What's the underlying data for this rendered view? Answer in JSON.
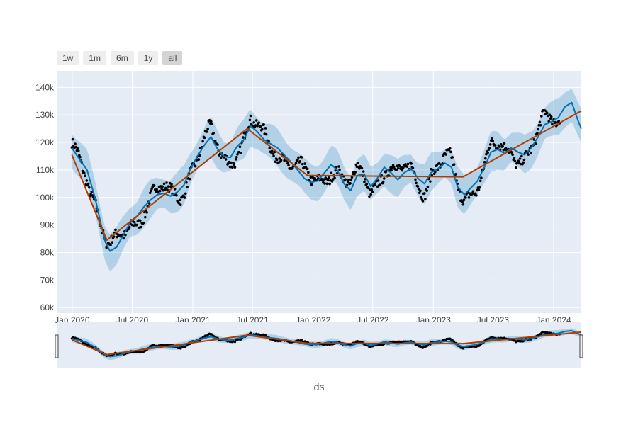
{
  "range_selector": {
    "buttons": [
      {
        "label": "1w",
        "active": false
      },
      {
        "label": "1m",
        "active": false
      },
      {
        "label": "6m",
        "active": false
      },
      {
        "label": "1y",
        "active": false
      },
      {
        "label": "all",
        "active": true
      }
    ]
  },
  "colors": {
    "plot_bg": "#e5ecf6",
    "grid": "#ffffff",
    "forecast": "#0072B2",
    "band": "rgba(0,114,178,0.22)",
    "trend": "#B23B00",
    "actual": "#000000"
  },
  "chart_data": {
    "type": "line",
    "title": "",
    "xlabel": "ds",
    "ylabel": "",
    "x_range": [
      "2019-11-15",
      "2024-03-25"
    ],
    "ylim": [
      58000,
      146000
    ],
    "x_ticks": [
      {
        "date": "2020-01-01",
        "label": "Jan 2020"
      },
      {
        "date": "2020-07-01",
        "label": "Jul 2020"
      },
      {
        "date": "2021-01-01",
        "label": "Jan 2021"
      },
      {
        "date": "2021-07-01",
        "label": "Jul 2021"
      },
      {
        "date": "2022-01-01",
        "label": "Jan 2022"
      },
      {
        "date": "2022-07-01",
        "label": "Jul 2022"
      },
      {
        "date": "2023-01-01",
        "label": "Jan 2023"
      },
      {
        "date": "2023-07-01",
        "label": "Jul 2023"
      },
      {
        "date": "2024-01-01",
        "label": "Jan 2024"
      }
    ],
    "y_ticks": [
      {
        "value": 60000,
        "label": "60k"
      },
      {
        "value": 70000,
        "label": "70k"
      },
      {
        "value": 80000,
        "label": "80k"
      },
      {
        "value": 90000,
        "label": "90k"
      },
      {
        "value": 100000,
        "label": "100k"
      },
      {
        "value": 110000,
        "label": "110k"
      },
      {
        "value": 120000,
        "label": "120k"
      },
      {
        "value": 130000,
        "label": "130k"
      },
      {
        "value": 140000,
        "label": "140k"
      }
    ],
    "grid": true,
    "legend": "none",
    "range_slider": true,
    "series": [
      {
        "role": "trend",
        "x": [
          "2019-12-31",
          "2020-04-15",
          "2021-06-15",
          "2021-12-15",
          "2023-04-01",
          "2024-03-25"
        ],
        "y": [
          115500,
          84500,
          125000,
          108000,
          107500,
          131500
        ]
      },
      {
        "role": "forecast",
        "x": [
          "2019-12-31",
          "2020-01-20",
          "2020-02-15",
          "2020-03-10",
          "2020-03-25",
          "2020-04-10",
          "2020-04-25",
          "2020-05-15",
          "2020-06-05",
          "2020-06-25",
          "2020-07-15",
          "2020-08-05",
          "2020-08-25",
          "2020-09-15",
          "2020-10-05",
          "2020-10-25",
          "2020-11-15",
          "2020-12-05",
          "2020-12-25",
          "2021-01-15",
          "2021-02-05",
          "2021-02-25",
          "2021-03-15",
          "2021-04-05",
          "2021-04-25",
          "2021-05-15",
          "2021-06-05",
          "2021-06-25",
          "2021-07-15",
          "2021-08-05",
          "2021-08-25",
          "2021-09-15",
          "2021-10-05",
          "2021-10-25",
          "2021-11-15",
          "2021-12-05",
          "2021-12-25",
          "2022-01-15",
          "2022-02-05",
          "2022-02-25",
          "2022-03-15",
          "2022-04-05",
          "2022-04-25",
          "2022-05-15",
          "2022-06-05",
          "2022-06-25",
          "2022-07-15",
          "2022-08-05",
          "2022-08-25",
          "2022-09-15",
          "2022-10-05",
          "2022-10-25",
          "2022-11-15",
          "2022-12-05",
          "2022-12-25",
          "2023-01-15",
          "2023-02-05",
          "2023-02-25",
          "2023-03-15",
          "2023-04-05",
          "2023-04-25",
          "2023-05-15",
          "2023-06-05",
          "2023-06-25",
          "2023-07-15",
          "2023-08-05",
          "2023-08-25",
          "2023-09-15",
          "2023-10-05",
          "2023-10-25",
          "2023-11-15",
          "2023-12-05",
          "2023-12-25",
          "2024-01-15",
          "2024-02-05",
          "2024-02-25",
          "2024-03-15",
          "2024-03-25"
        ],
        "y": [
          118000,
          114500,
          110000,
          100000,
          92000,
          84000,
          80500,
          82000,
          86500,
          91000,
          93000,
          96500,
          99000,
          101000,
          101500,
          100500,
          102000,
          104500,
          110500,
          115000,
          119000,
          122000,
          118000,
          115000,
          114500,
          118500,
          121000,
          126000,
          124000,
          121000,
          119500,
          118000,
          115500,
          113000,
          110000,
          107000,
          105500,
          106000,
          109000,
          112000,
          110000,
          105000,
          102500,
          108000,
          108500,
          104000,
          107000,
          111000,
          109000,
          106500,
          109000,
          110500,
          107000,
          105000,
          109000,
          110500,
          112500,
          111000,
          104000,
          101000,
          103500,
          106000,
          111000,
          116500,
          117500,
          116000,
          118000,
          116500,
          115500,
          118000,
          122000,
          126500,
          127500,
          129000,
          133000,
          134500,
          128000,
          125000
        ]
      }
    ]
  }
}
